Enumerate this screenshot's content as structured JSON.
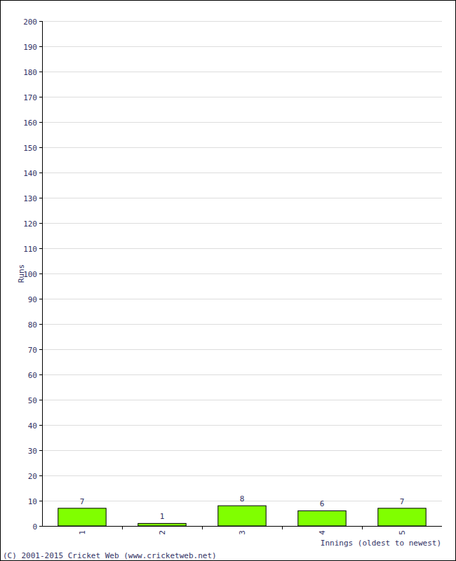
{
  "chart_data": {
    "type": "bar",
    "x_label": "Innings (oldest to newest)",
    "y_label": "Runs",
    "annotations": [
      "(C) 2001-2015 Cricket Web (www.cricketweb.net)"
    ],
    "categories": [
      "1",
      "2",
      "3",
      "4",
      "5"
    ],
    "values": [
      7,
      1,
      8,
      6,
      7
    ],
    "color": "#80ff00",
    "ylim": [
      0,
      200
    ],
    "yticks": [
      0,
      10,
      20,
      30,
      40,
      50,
      60,
      70,
      80,
      90,
      100,
      110,
      120,
      130,
      140,
      150,
      160,
      170,
      180,
      190,
      200
    ],
    "grid": true,
    "data_labels": true
  }
}
